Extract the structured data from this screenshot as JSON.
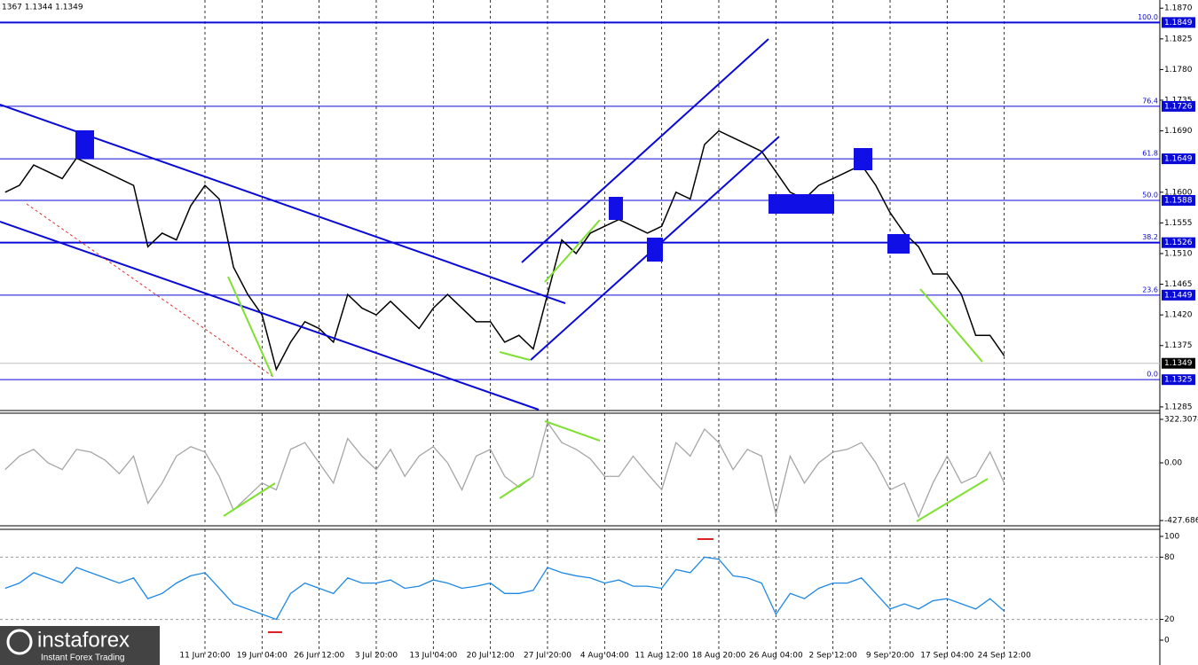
{
  "header": "1367 1.1344 1.1349",
  "watermark": {
    "brand": "instaforex",
    "tagline": "Instant Forex Trading"
  },
  "chart_data": [
    {
      "type": "line",
      "color": "#000000",
      "xlim": [
        -0.36,
        80.9
      ],
      "ylim": [
        1.1281,
        1.1882
      ],
      "xticks": [
        {
          "value": 14,
          "label": "11 Jun 20:00"
        },
        {
          "value": 18,
          "label": "19 Jun 04:00"
        },
        {
          "value": 22,
          "label": "26 Jun 12:00"
        },
        {
          "value": 26,
          "label": "3 Jul 20:00"
        },
        {
          "value": 30,
          "label": "13 Jul 04:00"
        },
        {
          "value": 34,
          "label": "20 Jul 12:00"
        },
        {
          "value": 38,
          "label": "27 Jul 20:00"
        },
        {
          "value": 42,
          "label": "4 Aug 04:00"
        },
        {
          "value": 46,
          "label": "11 Aug 12:00"
        },
        {
          "value": 50,
          "label": "18 Aug 20:00"
        },
        {
          "value": 54,
          "label": "26 Aug 04:00"
        },
        {
          "value": 58,
          "label": "2 Sep 12:00"
        },
        {
          "value": 62,
          "label": "9 Sep 20:00"
        },
        {
          "value": 66,
          "label": "17 Sep 04:00"
        },
        {
          "value": 70,
          "label": "24 Sep 12:00"
        }
      ],
      "yticks": [
        1.1285,
        1.1375,
        {
          "value": 1.142,
          "label": "1.1420"
        },
        1.1465,
        {
          "value": 1.151,
          "label": "1.1510"
        },
        1.1555,
        {
          "value": 1.16,
          "label": "1.1600"
        },
        {
          "value": 1.169,
          "label": "1.1690"
        },
        1.1735,
        {
          "value": 1.178,
          "label": "1.1780"
        },
        1.1825,
        {
          "value": 1.187,
          "label": "1.1870"
        }
      ],
      "levels": [
        {
          "pct": "100.0",
          "price": 1.1849
        },
        {
          "pct": "76.4",
          "price": 1.1726
        },
        {
          "pct": "61.8",
          "price": 1.1649
        },
        {
          "pct": "50.0",
          "price": 1.1588
        },
        {
          "pct": "38.2",
          "price": 1.1526
        },
        {
          "pct": "23.6",
          "price": 1.1449
        },
        {
          "pct": "0.0",
          "price": 1.1325
        }
      ],
      "last_price": 1.1349,
      "values": [
        1.16,
        1.161,
        1.164,
        1.163,
        1.162,
        1.165,
        1.164,
        1.163,
        1.162,
        1.161,
        1.152,
        1.154,
        1.153,
        1.158,
        1.161,
        1.159,
        1.149,
        1.145,
        1.142,
        1.134,
        1.138,
        1.141,
        1.14,
        1.138,
        1.145,
        1.143,
        1.142,
        1.144,
        1.142,
        1.14,
        1.143,
        1.145,
        1.143,
        1.141,
        1.141,
        1.138,
        1.139,
        1.137,
        1.145,
        1.153,
        1.151,
        1.154,
        1.155,
        1.156,
        1.155,
        1.154,
        1.155,
        1.16,
        1.159,
        1.167,
        1.169,
        1.168,
        1.167,
        1.166,
        1.163,
        1.16,
        1.159,
        1.161,
        1.162,
        1.163,
        1.164,
        1.161,
        1.157,
        1.154,
        1.152,
        1.148,
        1.148,
        1.145,
        1.139,
        1.139,
        1.136
      ]
    },
    {
      "type": "line",
      "color": "#a6a6a6",
      "ylim": [
        -460,
        368
      ],
      "yticks": [
        322.3074,
        {
          "value": 0,
          "label": "0.00"
        },
        -427.686
      ],
      "values": [
        -50,
        50,
        100,
        0,
        -50,
        100,
        80,
        20,
        -80,
        50,
        -300,
        -150,
        50,
        120,
        80,
        -100,
        -350,
        -250,
        -150,
        -200,
        100,
        150,
        0,
        -150,
        180,
        50,
        -50,
        100,
        -100,
        50,
        120,
        0,
        -200,
        50,
        100,
        -100,
        -180,
        -100,
        300,
        150,
        100,
        30,
        -100,
        -100,
        50,
        -80,
        -200,
        150,
        50,
        250,
        150,
        -50,
        100,
        50,
        -380,
        50,
        -150,
        0,
        80,
        100,
        150,
        0,
        -200,
        -150,
        -400,
        -150,
        50,
        -150,
        -100,
        80,
        -150
      ]
    },
    {
      "type": "line",
      "color": "#1e88e5",
      "ylim": [
        -15.4,
        106.8
      ],
      "yticks": [
        100,
        80,
        20,
        0
      ],
      "levels": [
        80,
        20
      ],
      "values": [
        50,
        55,
        65,
        60,
        55,
        70,
        65,
        60,
        55,
        60,
        40,
        45,
        55,
        62,
        65,
        50,
        35,
        30,
        25,
        20,
        45,
        55,
        50,
        45,
        60,
        55,
        55,
        58,
        50,
        52,
        58,
        55,
        50,
        52,
        55,
        45,
        45,
        48,
        70,
        65,
        62,
        60,
        55,
        58,
        52,
        52,
        50,
        68,
        65,
        80,
        78,
        62,
        60,
        55,
        25,
        45,
        40,
        50,
        55,
        55,
        60,
        45,
        30,
        35,
        30,
        38,
        40,
        35,
        30,
        40,
        28
      ]
    }
  ]
}
